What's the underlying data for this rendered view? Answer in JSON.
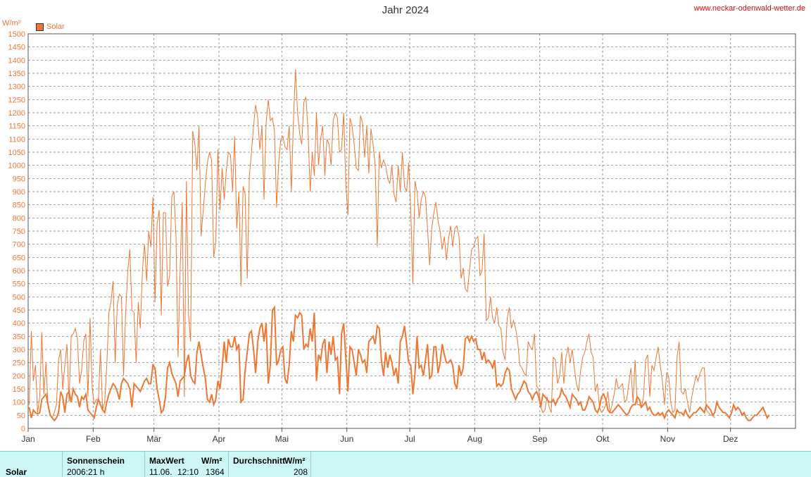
{
  "title": "Jahr 2024",
  "site": "www.neckar-odenwald-wetter.de",
  "unit": "W/m²",
  "legend_label": "Solar",
  "colors": {
    "series": "#ee7733",
    "grid": "#999999",
    "axis": "#555555",
    "title_link": "#d01010"
  },
  "footer": {
    "row_label": "Solar",
    "sunshine_header": "Sonnenschein",
    "sunshine_value": "2006:21 h",
    "max_header": "MaxWert",
    "max_unit": "W/m²",
    "max_date": "11.06.",
    "max_time": "12:10",
    "max_value": "1364",
    "avg_header": "Durchschnitt",
    "avg_unit": "W/m²",
    "avg_value": "208"
  },
  "chart_data": {
    "type": "line",
    "title": "Jahr 2024",
    "ylabel": "W/m²",
    "ylim": [
      0,
      1500
    ],
    "yticks": [
      0,
      50,
      100,
      150,
      200,
      250,
      300,
      350,
      400,
      450,
      500,
      550,
      600,
      650,
      700,
      750,
      800,
      850,
      900,
      950,
      1000,
      1050,
      1100,
      1150,
      1200,
      1250,
      1300,
      1350,
      1400,
      1450,
      1500
    ],
    "xlim": [
      0,
      366
    ],
    "months": [
      "Jan",
      "Feb",
      "Mär",
      "Apr",
      "Mai",
      "Jun",
      "Jul",
      "Aug",
      "Sep",
      "Okt",
      "Nov",
      "Dez"
    ],
    "month_starts": [
      0,
      31,
      60,
      91,
      121,
      152,
      182,
      213,
      244,
      274,
      305,
      335
    ],
    "grid": true,
    "series": [
      {
        "name": "Solar",
        "values_max": [
          90,
          370,
          180,
          240,
          60,
          120,
          365,
          130,
          250,
          80,
          50,
          40,
          60,
          90,
          260,
          300,
          150,
          240,
          320,
          100,
          350,
          360,
          380,
          340,
          170,
          220,
          330,
          360,
          120,
          420,
          160,
          90,
          110,
          110,
          300,
          70,
          100,
          240,
          440,
          480,
          560,
          250,
          470,
          510,
          500,
          200,
          440,
          600,
          680,
          450,
          440,
          250,
          480,
          380,
          600,
          700,
          560,
          750,
          690,
          880,
          480,
          780,
          830,
          430,
          820,
          820,
          540,
          580,
          880,
          900,
          730,
          270,
          610,
          860,
          120,
          940,
          430,
          330,
          1130,
          1080,
          980,
          1150,
          730,
          830,
          930,
          1010,
          1050,
          1020,
          650,
          710,
          1060,
          830,
          990,
          870,
          980,
          1050,
          1040,
          900,
          1110,
          760,
          900,
          540,
          920,
          890,
          570,
          960,
          1050,
          1150,
          1230,
          1180,
          1060,
          1150,
          870,
          1160,
          1250,
          1170,
          1180,
          1130,
          840,
          1010,
          1100,
          1110,
          1070,
          1060,
          1150,
          900,
          1160,
          1365,
          1200,
          1120,
          1080,
          1240,
          1260,
          1130,
          900,
          1050,
          960,
          1200,
          1000,
          1100,
          1150,
          960,
          1100,
          1080,
          1000,
          1170,
          1200,
          1180,
          1050,
          1060,
          1200,
          930,
          810,
          1180,
          1150,
          1080,
          990,
          980,
          1190,
          1160,
          1030,
          1150,
          970,
          1140,
          1080,
          1000,
          690,
          1050,
          990,
          1020,
          1000,
          950,
          930,
          1000,
          890,
          860,
          1000,
          900,
          1050,
          920,
          900,
          1010,
          830,
          550,
          940,
          900,
          800,
          870,
          900,
          880,
          760,
          620,
          760,
          820,
          860,
          790,
          750,
          680,
          730,
          640,
          720,
          770,
          690,
          760,
          770,
          730,
          570,
          610,
          530,
          520,
          600,
          680,
          690,
          720,
          730,
          580,
          600,
          740,
          410,
          420,
          500,
          420,
          400,
          460,
          390,
          380,
          290,
          260,
          420,
          460,
          380,
          410,
          380,
          330,
          240,
          230,
          210,
          200,
          330,
          310,
          300,
          360,
          160,
          150,
          80,
          60,
          70,
          120,
          80,
          60,
          270,
          260,
          170,
          200,
          290,
          170,
          270,
          310,
          250,
          300,
          230,
          170,
          140,
          220,
          270,
          290,
          330,
          360,
          290,
          270,
          140,
          170,
          80,
          60,
          70,
          90,
          140,
          60,
          90,
          130,
          190,
          150,
          160,
          170,
          100,
          110,
          170,
          230,
          100,
          260,
          90,
          90,
          80,
          120,
          260,
          280,
          120,
          240,
          220,
          270,
          310,
          240,
          180,
          90,
          210,
          200,
          100,
          60,
          70,
          270,
          330,
          140,
          130,
          150,
          100,
          60,
          120,
          160,
          200,
          180,
          210,
          230,
          230,
          70,
          60,
          50,
          50,
          40
        ]
      },
      {
        "name": "Solar Tagesmittel",
        "values_avg": [
          80,
          40,
          70,
          60,
          55,
          60,
          110,
          120,
          130,
          90,
          50,
          40,
          30,
          40,
          60,
          140,
          120,
          60,
          130,
          140,
          100,
          150,
          130,
          120,
          80,
          120,
          110,
          130,
          70,
          60,
          50,
          40,
          80,
          110,
          90,
          70,
          60,
          100,
          130,
          150,
          170,
          160,
          140,
          110,
          170,
          190,
          180,
          170,
          150,
          80,
          170,
          160,
          150,
          140,
          160,
          180,
          190,
          170,
          170,
          240,
          230,
          150,
          110,
          60,
          70,
          120,
          230,
          250,
          210,
          190,
          170,
          120,
          180,
          190,
          200,
          250,
          280,
          200,
          180,
          170,
          290,
          330,
          280,
          230,
          190,
          110,
          100,
          130,
          90,
          110,
          180,
          150,
          230,
          330,
          250,
          340,
          310,
          310,
          350,
          300,
          320,
          100,
          110,
          220,
          290,
          360,
          370,
          300,
          210,
          330,
          380,
          400,
          330,
          400,
          170,
          240,
          450,
          460,
          240,
          260,
          300,
          310,
          190,
          170,
          240,
          370,
          330,
          430,
          420,
          440,
          430,
          300,
          320,
          310,
          380,
          330,
          440,
          180,
          280,
          260,
          320,
          340,
          210,
          330,
          280,
          350,
          260,
          270,
          130,
          360,
          400,
          270,
          140,
          310,
          300,
          250,
          200,
          300,
          280,
          250,
          260,
          210,
          330,
          340,
          350,
          320,
          390,
          380,
          260,
          200,
          290,
          230,
          280,
          250,
          200,
          230,
          170,
          330,
          350,
          390,
          320,
          250,
          240,
          130,
          210,
          350,
          230,
          240,
          200,
          260,
          320,
          190,
          200,
          310,
          310,
          210,
          250,
          320,
          280,
          250,
          250,
          260,
          240,
          170,
          150,
          240,
          200,
          230,
          340,
          350,
          330,
          350,
          330,
          340,
          300,
          300,
          260,
          290,
          250,
          260,
          250,
          230,
          260,
          160,
          170,
          160,
          170,
          210,
          230,
          220,
          150,
          130,
          110,
          130,
          140,
          160,
          180,
          170,
          140,
          130,
          110,
          130,
          140,
          120,
          80,
          130,
          120,
          110,
          100,
          100,
          110,
          90,
          110,
          120,
          150,
          130,
          120,
          100,
          80,
          130,
          120,
          110,
          90,
          100,
          70,
          70,
          90,
          120,
          110,
          100,
          70,
          60,
          80,
          120,
          130,
          110,
          70,
          60,
          60,
          70,
          80,
          90,
          80,
          70,
          60,
          50,
          60,
          80,
          90,
          90,
          120,
          110,
          80,
          90,
          100,
          70,
          80,
          60,
          50,
          50,
          60,
          50,
          60,
          40,
          60,
          70,
          60,
          50,
          40,
          70,
          60,
          60,
          50,
          70,
          50,
          40,
          50,
          60,
          60,
          70,
          80,
          70,
          60,
          90,
          80,
          70,
          50,
          60,
          100,
          80,
          70,
          60,
          60,
          50,
          40,
          60,
          90,
          70,
          80,
          70,
          50,
          60,
          40,
          30,
          30,
          40,
          50,
          50,
          60,
          70,
          80,
          60,
          40,
          50
        ]
      }
    ]
  }
}
